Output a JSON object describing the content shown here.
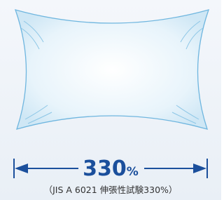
{
  "measurement": {
    "value": "330",
    "unit": "%"
  },
  "note": "（JIS A 6021 伸張性試験330%）"
}
